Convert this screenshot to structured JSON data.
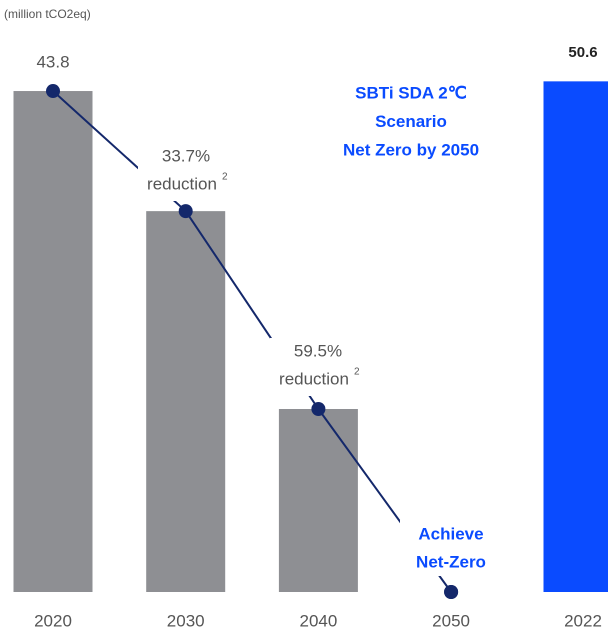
{
  "chart_data": [
    {
      "type": "bar",
      "unit_label": "(million tCO2eq)",
      "categories": [
        "2020",
        "2030",
        "2040",
        "2050"
      ],
      "values": [
        43.8,
        33.3,
        16.0,
        0
      ],
      "color": "#8e8f93",
      "line_color": "#14286b",
      "ylim": [
        0,
        48
      ],
      "annotations": [
        {
          "lines": [
            "33.7%",
            "reduction"
          ],
          "sup": "2"
        },
        {
          "lines": [
            "59.5%",
            "reduction"
          ],
          "sup": "2"
        }
      ],
      "scenario_text": [
        "SBTi SDA 2℃",
        "Scenario",
        "Net Zero by 2050"
      ],
      "goal_text": [
        "Achieve",
        "Net-Zero"
      ],
      "highlight_color": "#0a4bff"
    },
    {
      "type": "bar",
      "categories": [
        "2022"
      ],
      "values": [
        50.6
      ],
      "color": "#0a4bff",
      "ylim": [
        0,
        54.4
      ]
    }
  ]
}
